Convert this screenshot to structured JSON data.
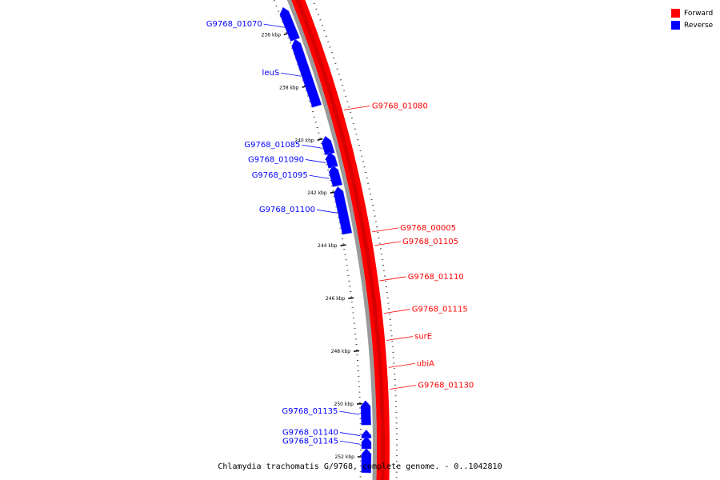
{
  "legend": {
    "forward_label": "Forward",
    "reverse_label": "Reverse",
    "forward_color": "#ff0000",
    "reverse_color": "#0000ff"
  },
  "caption": "Chlamydia trachomatis G/9768, complete genome. - 0..1042810",
  "scale_unit": "kbp",
  "scale_ticks": [
    {
      "label": "236 kbp",
      "kbp": 236
    },
    {
      "label": "238 kbp",
      "kbp": 238
    },
    {
      "label": "240 kbp",
      "kbp": 240
    },
    {
      "label": "242 kbp",
      "kbp": 242
    },
    {
      "label": "244 kbp",
      "kbp": 244
    },
    {
      "label": "246 kbp",
      "kbp": 246
    },
    {
      "label": "248 kbp",
      "kbp": 248
    },
    {
      "label": "250 kbp",
      "kbp": 250
    },
    {
      "label": "252 kbp",
      "kbp": 252
    }
  ],
  "reverse_genes": [
    {
      "name": "G9768_01070",
      "start_kbp": 235.2,
      "end_kbp": 236.3
    },
    {
      "name": "leuS",
      "start_kbp": 236.4,
      "end_kbp": 238.8
    },
    {
      "name": "G9768_01085",
      "start_kbp": 240.05,
      "end_kbp": 240.6
    },
    {
      "name": "G9768_01090",
      "start_kbp": 240.65,
      "end_kbp": 241.1
    },
    {
      "name": "G9768_01095",
      "start_kbp": 241.15,
      "end_kbp": 241.8
    },
    {
      "name": "G9768_01100",
      "start_kbp": 241.95,
      "end_kbp": 243.6
    },
    {
      "name": "G9768_01135",
      "start_kbp": 250.0,
      "end_kbp": 250.8
    },
    {
      "name": "G9768_01140",
      "start_kbp": 251.1,
      "end_kbp": 251.3
    },
    {
      "name": "G9768_01145",
      "start_kbp": 251.35,
      "end_kbp": 251.7
    },
    {
      "name": "",
      "start_kbp": 251.8,
      "end_kbp": 252.6
    }
  ],
  "forward_genes": [
    {
      "name": "G9768_01080",
      "start_kbp": 239.2
    },
    {
      "name": "G9768_00005",
      "start_kbp": 243.7
    },
    {
      "name": "G9768_01105",
      "start_kbp": 244.2
    },
    {
      "name": "G9768_01110",
      "start_kbp": 245.5
    },
    {
      "name": "G9768_01115",
      "start_kbp": 246.7
    },
    {
      "name": "surE",
      "start_kbp": 247.7
    },
    {
      "name": "ubiA",
      "start_kbp": 248.7
    },
    {
      "name": "G9768_01130",
      "start_kbp": 249.5
    }
  ]
}
